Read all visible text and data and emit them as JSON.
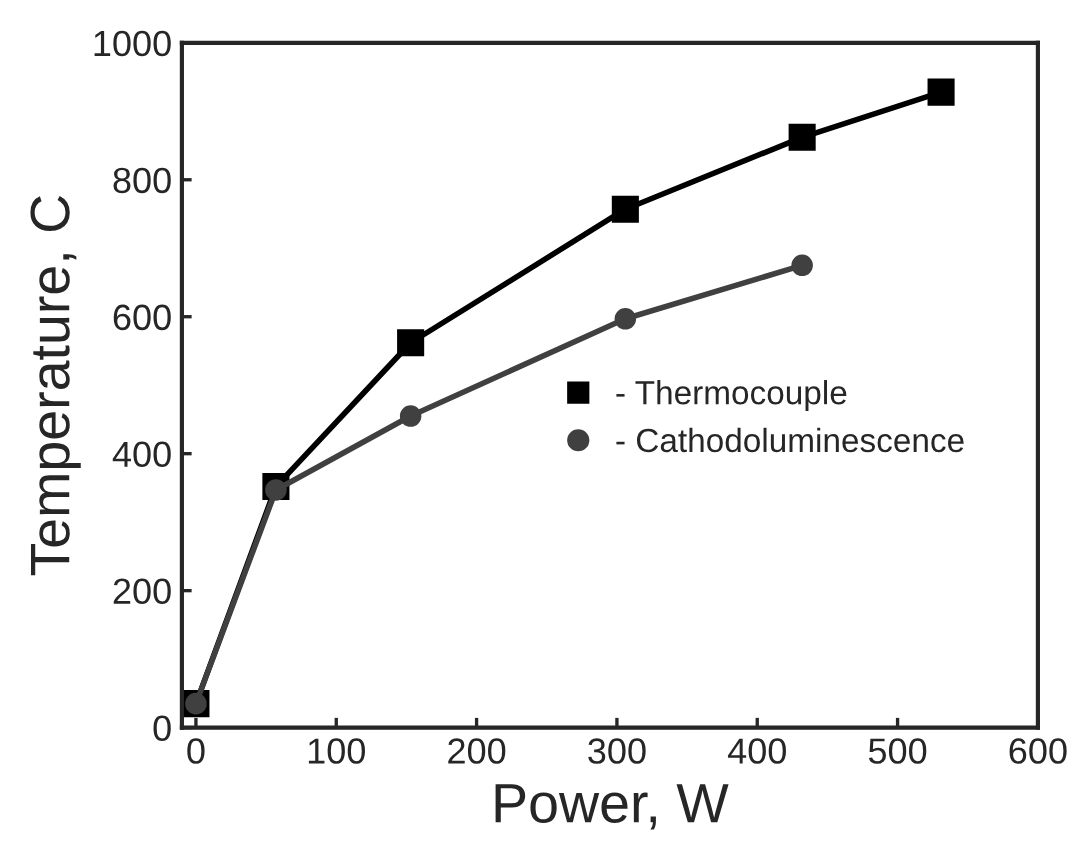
{
  "chart_data": {
    "type": "line",
    "xlabel": "Power, W",
    "ylabel": "Temperature, C",
    "xlim": [
      -10,
      600
    ],
    "xticks": [
      0,
      100,
      200,
      300,
      400,
      500,
      600
    ],
    "ylim": [
      0,
      1000
    ],
    "yticks": [
      0,
      200,
      400,
      600,
      800,
      1000
    ],
    "series": [
      {
        "name": "- Thermocouple",
        "color": "#000000",
        "marker": "square",
        "x": [
          0,
          57,
          153,
          306,
          432,
          531
        ],
        "values": [
          35,
          352,
          562,
          757,
          862,
          928
        ]
      },
      {
        "name": "- Cathodoluminescence",
        "color": "#404040",
        "marker": "circle",
        "x": [
          0,
          57,
          153,
          306,
          432
        ],
        "values": [
          35,
          347,
          455,
          597,
          675
        ]
      }
    ],
    "grid": false,
    "legend": "center right",
    "line_style": "solid"
  }
}
